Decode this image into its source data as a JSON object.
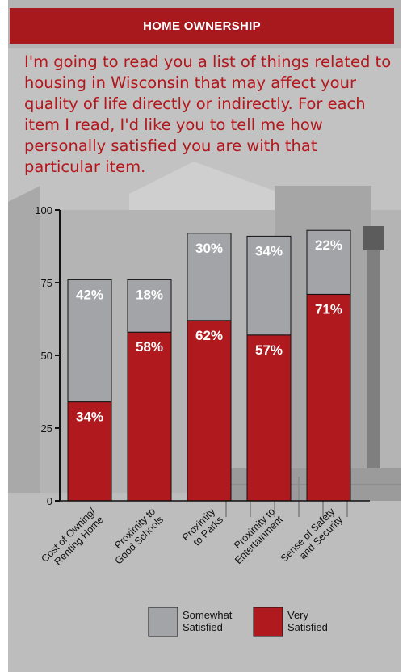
{
  "panel": {
    "title": "HOME OWNERSHIP",
    "intro": "I'm going to read you a list of things related to housing in Wisconsin that may affect your quality of life directly or indirectly. For each item I read, I'd like you to tell me how personally satisfied you are with that particular item."
  },
  "colors": {
    "header_bg": "#a8191d",
    "intro_text": "#b3161b",
    "very_satisfied": "#b01a1e",
    "somewhat_satisfied": "#a3a4a8"
  },
  "chart_data": {
    "type": "bar",
    "stacked": true,
    "categories": [
      "Cost of Owning/\nRenting Home",
      "Proximity to\nGood Schools",
      "Proximity\nto Parks",
      "Proximity to\nEntertainment",
      "Sense of Safety\nand Security"
    ],
    "series": [
      {
        "name": "Very Satisfied",
        "values": [
          34,
          58,
          62,
          57,
          71
        ],
        "labels": [
          "34%",
          "58%",
          "62%",
          "57%",
          "71%"
        ]
      },
      {
        "name": "Somewhat Satisfied",
        "values": [
          42,
          18,
          30,
          34,
          22
        ],
        "labels": [
          "42%",
          "18%",
          "30%",
          "34%",
          "22%"
        ]
      }
    ],
    "ylim": [
      0,
      100
    ],
    "yticks": [
      "0",
      "25",
      "50",
      "75",
      "100"
    ],
    "legend": [
      {
        "series": "Somewhat Satisfied",
        "lines": [
          "Somewhat",
          "Satisfied"
        ]
      },
      {
        "series": "Very Satisfied",
        "lines": [
          "Very",
          "Satisfied"
        ]
      }
    ],
    "legend_position": "bottom",
    "grid": false,
    "xlabel": "",
    "ylabel": ""
  }
}
